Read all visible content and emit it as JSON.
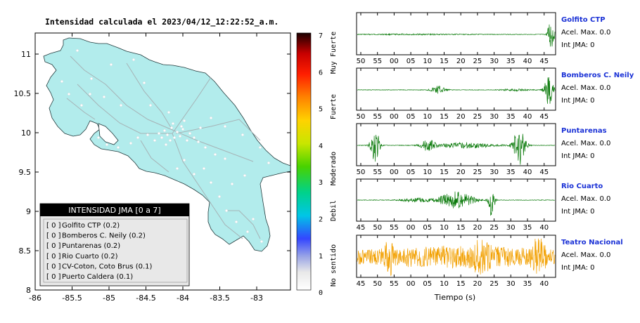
{
  "map": {
    "title": "Intensidad calculada el 2023/04/12_12:22:52_a.m.",
    "lon_ticks": [
      "-86",
      "-85.5",
      "-85",
      "-84.5",
      "-84",
      "-83.5",
      "-83"
    ],
    "lat_ticks": [
      "11",
      "10.5",
      "10",
      "9.5",
      "9",
      "8.5",
      "8"
    ],
    "legend": {
      "title": "INTENSIDAD JMA [0 a 7]",
      "items": [
        {
          "level": "[ 0 ]",
          "name": "Golfito CTP (0.2)"
        },
        {
          "level": "[ 0 ]",
          "name": "Bomberos C. Neily (0.2)"
        },
        {
          "level": "[ 0 ]",
          "name": "Puntarenas (0.2)"
        },
        {
          "level": "[ 0 ]",
          "name": "Rio Cuarto (0.2)"
        },
        {
          "level": "[ 0 ]",
          "name": "CV-Coton, Coto Brus (0.1)"
        },
        {
          "level": "[ 0 ]",
          "name": "Puerto Caldera (0.1)"
        }
      ]
    },
    "colors": {
      "land": "#b2ecec",
      "roads": "#a6b3b6",
      "coast": "#233a3c"
    }
  },
  "colorbar": {
    "ticks": [
      "7",
      "6",
      "5",
      "4",
      "3",
      "2",
      "1",
      "0"
    ],
    "labels": [
      "Muy Fuerte",
      "Fuerte",
      "Moderado",
      "Debil",
      "No sentido"
    ]
  },
  "seismograms": {
    "xlabel": "Tiempo (s)",
    "panels": [
      {
        "station": "Golfito CTP",
        "acel": "Acel. Max. 0.0",
        "int": "Int JMA: 0",
        "ticks": [
          "50",
          "55",
          "00",
          "05",
          "10",
          "15",
          "20",
          "25",
          "30",
          "35",
          "40",
          "45"
        ],
        "tick_offset": 5,
        "color": "#0a7a0a"
      },
      {
        "station": "Bomberos C. Neily",
        "acel": "Acel. Max. 0.0",
        "int": "Int JMA: 0",
        "ticks": [
          "50",
          "55",
          "00",
          "05",
          "10",
          "15",
          "20",
          "25",
          "30",
          "35",
          "40",
          "45"
        ],
        "tick_offset": 5,
        "color": "#0a7a0a"
      },
      {
        "station": "Puntarenas",
        "acel": "Acel. Max. 0.0",
        "int": "Int JMA: 0",
        "ticks": [
          "50",
          "55",
          "00",
          "05",
          "10",
          "15",
          "20",
          "25",
          "30",
          "35",
          "40",
          "45"
        ],
        "tick_offset": 5,
        "color": "#0a7a0a"
      },
      {
        "station": "Rio Cuarto",
        "acel": "Acel. Max. 0.0",
        "int": "Int JMA: 0",
        "ticks": [
          "45",
          "50",
          "55",
          "00",
          "05",
          "10",
          "15",
          "20",
          "25",
          "30",
          "35",
          "40"
        ],
        "tick_offset": 5,
        "color": "#0a7a0a"
      },
      {
        "station": "Teatro Nacional",
        "acel": "Acel. Max. 0.0",
        "int": "Int JMA: 0",
        "ticks": [
          "45",
          "50",
          "55",
          "00",
          "05",
          "10",
          "15",
          "20",
          "25",
          "30",
          "35",
          "40"
        ],
        "tick_offset": 5,
        "color": "#f2a000"
      }
    ]
  },
  "chart_data": [
    {
      "type": "other",
      "title": "Intensidad calculada el 2023/04/12_12:22:52_a.m.",
      "xlim": [
        -86,
        -82.6
      ],
      "ylim": [
        8,
        11.35
      ]
    },
    {
      "type": "line",
      "xlabel": "Tiempo (s)",
      "ylabel": "",
      "series": [
        {
          "name": "Golfito CTP",
          "note": "Acel. Max. 0.0, Int JMA: 0"
        },
        {
          "name": "Bomberos C. Neily",
          "note": "Acel. Max. 0.0, Int JMA: 0"
        },
        {
          "name": "Puntarenas",
          "note": "Acel. Max. 0.0, Int JMA: 0"
        },
        {
          "name": "Rio Cuarto",
          "note": "Acel. Max. 0.0, Int JMA: 0"
        },
        {
          "name": "Teatro Nacional",
          "note": "Acel. Max. 0.0, Int JMA: 0"
        }
      ]
    }
  ]
}
